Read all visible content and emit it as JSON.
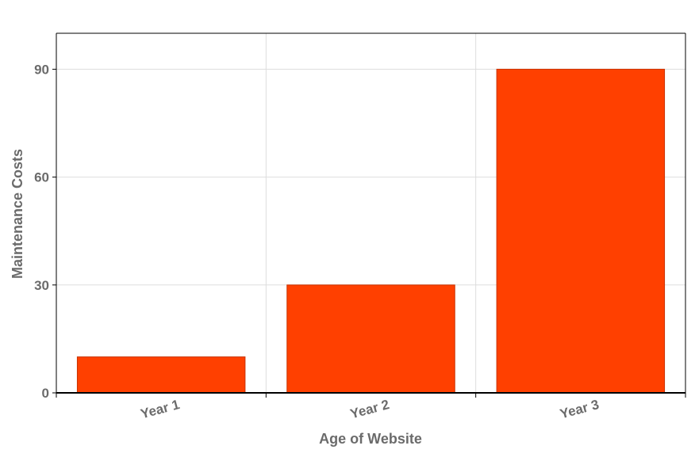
{
  "chart_data": {
    "type": "bar",
    "categories": [
      "Year 1",
      "Year 2",
      "Year 3"
    ],
    "values": [
      10,
      30,
      90
    ],
    "title": "",
    "xlabel": "Age of Website",
    "ylabel": "Maintenance Costs",
    "ylim": [
      0,
      100
    ],
    "yticks": [
      0,
      30,
      60,
      90
    ],
    "grid": true,
    "legend": "none",
    "bar_color": "#ff4000",
    "bar_edge_color": "#c83200"
  }
}
